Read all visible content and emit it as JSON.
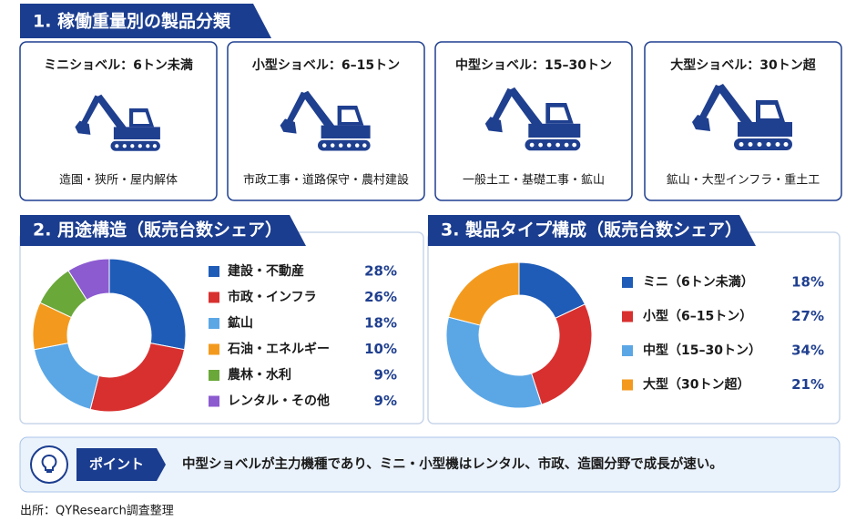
{
  "section1": {
    "title": "1. 稼働重量別の製品分類",
    "cards": [
      {
        "title": "ミニショベル：6トン未満",
        "uses": "造園・狭所・屋内解体"
      },
      {
        "title": "小型ショベル：6–15トン",
        "uses": "市政工事・道路保守・農村建設"
      },
      {
        "title": "中型ショベル：15–30トン",
        "uses": "一般土工・基礎工事・鉱山"
      },
      {
        "title": "大型ショベル：30トン超",
        "uses": "鉱山・大型インフラ・重土工"
      }
    ]
  },
  "chart_data": [
    {
      "type": "pie",
      "title": "2. 用途構造（販売台数シェア）",
      "categories": [
        "建設・不動産",
        "市政・インフラ",
        "鉱山",
        "石油・エネルギー",
        "農林・水利",
        "レンタル・その他"
      ],
      "values": [
        28,
        26,
        18,
        10,
        9,
        9
      ],
      "value_labels": [
        "28%",
        "26%",
        "18%",
        "10%",
        "9%",
        "9%"
      ],
      "colors": [
        "#1f5cb8",
        "#d8302f",
        "#5ba7e6",
        "#f39a1e",
        "#6aa83a",
        "#8c5bd0"
      ]
    },
    {
      "type": "pie",
      "title": "3. 製品タイプ構成（販売台数シェア）",
      "categories": [
        "ミニ（6トン未満）",
        "小型（6–15トン）",
        "中型（15–30トン）",
        "大型（30トン超）"
      ],
      "values": [
        18,
        27,
        34,
        21
      ],
      "value_labels": [
        "18%",
        "27%",
        "34%",
        "21%"
      ],
      "colors": [
        "#1f5cb8",
        "#d8302f",
        "#5ba7e6",
        "#f39a1e"
      ]
    }
  ],
  "point": {
    "label": "ポイント",
    "text": "中型ショベルが主力機種であり、ミニ・小型機はレンタル、市政、造園分野で成長が速い。"
  },
  "source": "出所：QYResearch調査整理"
}
